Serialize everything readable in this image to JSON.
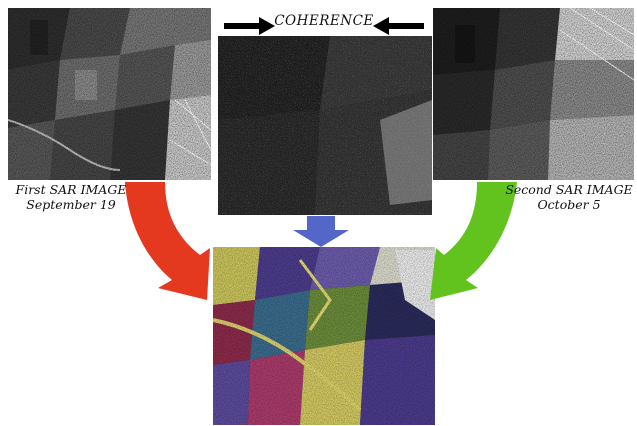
{
  "coherence_label": "COHERENCE",
  "first_image": {
    "line1": "First SAR IMAGE",
    "line2": "September 19"
  },
  "second_image": {
    "line1": "Second SAR IMAGE",
    "line2": "October 5"
  },
  "colors": {
    "red_arrow": "#e5391f",
    "green_arrow": "#62c31e",
    "blue_arrow": "#5467c9",
    "black_arrow": "#000000"
  }
}
